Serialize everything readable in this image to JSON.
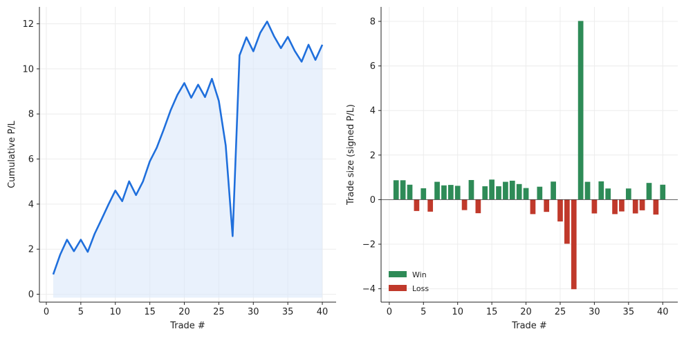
{
  "chart_data": [
    {
      "type": "area",
      "xlabel": "Trade #",
      "ylabel": "Cumulative P/L",
      "xlim": [
        -1,
        42
      ],
      "ylim": [
        -0.35,
        12.75
      ],
      "xticks": [
        0,
        5,
        10,
        15,
        20,
        25,
        30,
        35,
        40
      ],
      "yticks": [
        0,
        2,
        4,
        6,
        8,
        10,
        12
      ],
      "grid": true,
      "colors": {
        "line": "#1f6fdc",
        "fill": "#dbe8fa"
      },
      "baseline": -0.15,
      "x": [
        1,
        2,
        3,
        4,
        5,
        6,
        7,
        8,
        9,
        10,
        11,
        12,
        13,
        14,
        15,
        16,
        17,
        18,
        19,
        20,
        21,
        22,
        23,
        24,
        25,
        26,
        27,
        28,
        29,
        30,
        31,
        32,
        33,
        34,
        35,
        36,
        37,
        38,
        39,
        40
      ],
      "y": [
        0.88,
        1.75,
        2.42,
        1.91,
        2.42,
        1.88,
        2.68,
        3.32,
        3.98,
        4.6,
        4.13,
        5.01,
        4.4,
        5.0,
        5.9,
        6.5,
        7.3,
        8.15,
        8.85,
        9.37,
        8.72,
        9.3,
        8.75,
        9.56,
        8.58,
        6.6,
        2.58,
        10.6,
        11.4,
        10.78,
        11.6,
        12.1,
        11.45,
        10.92,
        11.42,
        10.8,
        10.32,
        11.07,
        10.4,
        11.07
      ]
    },
    {
      "type": "bar",
      "xlabel": "Trade #",
      "ylabel": "Trade size (signed P/L)",
      "xlim": [
        -1.2,
        42.2
      ],
      "ylim": [
        -4.6,
        8.65
      ],
      "xticks": [
        0,
        5,
        10,
        15,
        20,
        25,
        30,
        35,
        40
      ],
      "yticks": [
        -4,
        -2,
        0,
        2,
        4,
        6,
        8
      ],
      "grid": true,
      "legend_position": "lower-left",
      "colors": {
        "win": "#2e8b57",
        "loss": "#c0392b"
      },
      "legend": [
        {
          "label": "Win",
          "color": "#2e8b57"
        },
        {
          "label": "Loss",
          "color": "#c0392b"
        }
      ],
      "x": [
        1,
        2,
        3,
        4,
        5,
        6,
        7,
        8,
        9,
        10,
        11,
        12,
        13,
        14,
        15,
        16,
        17,
        18,
        19,
        20,
        21,
        22,
        23,
        24,
        25,
        26,
        27,
        28,
        29,
        30,
        31,
        32,
        33,
        34,
        35,
        36,
        37,
        38,
        39,
        40
      ],
      "values": [
        0.87,
        0.87,
        0.67,
        -0.51,
        0.51,
        -0.54,
        0.8,
        0.64,
        0.66,
        0.62,
        -0.47,
        0.88,
        -0.61,
        0.6,
        0.9,
        0.6,
        0.8,
        0.85,
        0.7,
        0.52,
        -0.65,
        0.58,
        -0.55,
        0.81,
        -0.98,
        -1.98,
        -4.02,
        8.02,
        0.8,
        -0.62,
        0.82,
        0.5,
        -0.65,
        -0.53,
        0.5,
        -0.62,
        -0.48,
        0.75,
        -0.67,
        0.67
      ]
    }
  ]
}
